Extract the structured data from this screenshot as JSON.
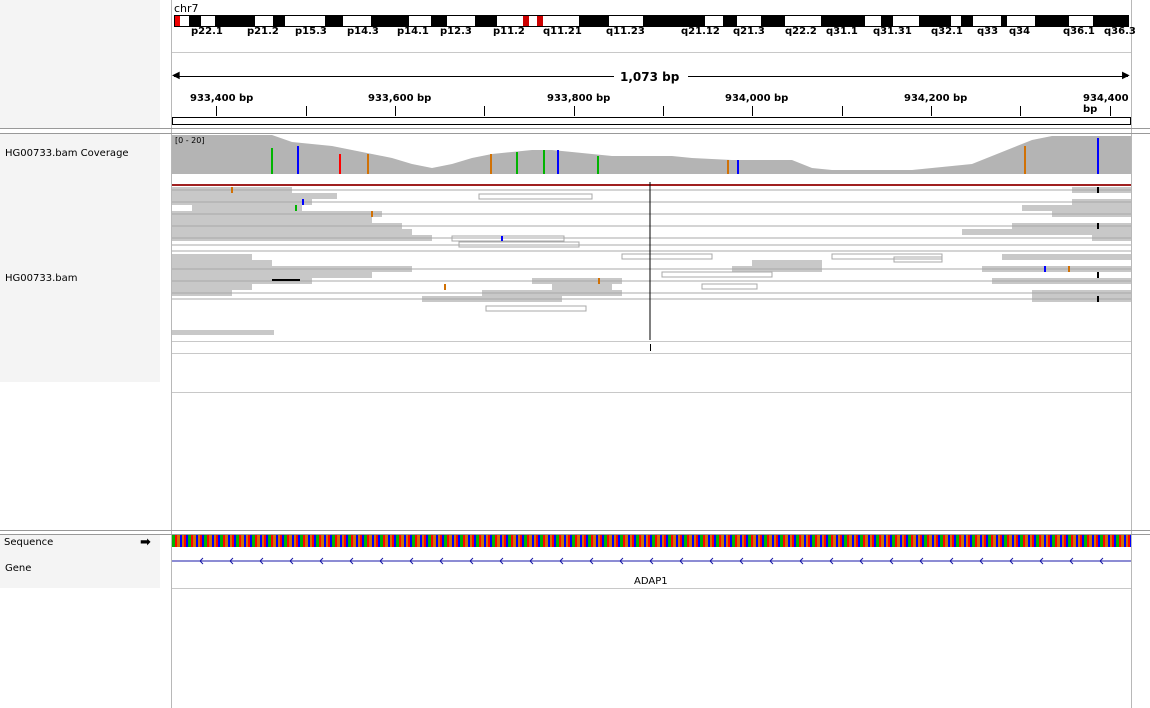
{
  "chromosome": "chr7",
  "ideogram": {
    "bands": [
      "p22.1",
      "p21.2",
      "p15.3",
      "p14.3",
      "p14.1",
      "p12.3",
      "p11.2",
      "q11.21",
      "q11.23",
      "q21.12",
      "q21.3",
      "q22.2",
      "q31.1",
      "q31.31",
      "q32.1",
      "q33",
      "q34",
      "q36.1",
      "q36.3"
    ]
  },
  "ruler": {
    "span_label": "1,073 bp",
    "ticks": [
      "933,400 bp",
      "933,600 bp",
      "933,800 bp",
      "934,000 bp",
      "934,200 bp",
      "934,400 bp"
    ]
  },
  "tracks": {
    "coverage_name": "HG00733.bam Coverage",
    "coverage_range": "[0 - 20]",
    "alignment_name": "HG00733.bam",
    "sequence_name": "Sequence",
    "gene_name": "Gene"
  },
  "gene": {
    "label": "ADAP1"
  },
  "colors": {
    "reads": "#c8c8c8",
    "coverage": "#b4b4b4",
    "gene_line": "#1a1aa8",
    "mismatch_A": "#00b400",
    "mismatch_C": "#0000ff",
    "mismatch_G": "#d17105",
    "mismatch_T": "#ff0000"
  },
  "icons": {
    "sequence_strand": "arrow-right-icon"
  }
}
